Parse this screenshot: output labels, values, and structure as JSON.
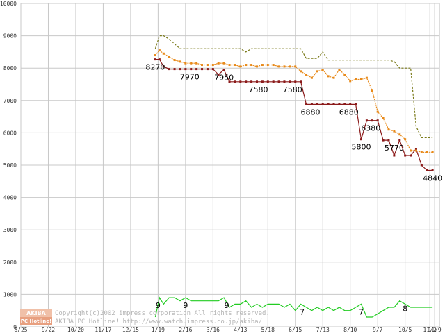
{
  "chart_data": {
    "type": "line",
    "ylim": [
      0,
      10000
    ],
    "yticks": [
      0,
      1000,
      2000,
      3000,
      4000,
      5000,
      6000,
      7000,
      8000,
      9000,
      10000
    ],
    "ytick_labels": [
      "0",
      "1000",
      "2000",
      "3000",
      "4000",
      "5000",
      "6000",
      "7000",
      "8000",
      "9000",
      "10000"
    ],
    "xticks": [
      {
        "pos": 0,
        "label": "8/25"
      },
      {
        "pos": 4,
        "label": "9/22"
      },
      {
        "pos": 8,
        "label": "10/20"
      },
      {
        "pos": 12,
        "label": "11/17"
      },
      {
        "pos": 16,
        "label": "12/15"
      },
      {
        "pos": 20,
        "label": "1/19"
      },
      {
        "pos": 24,
        "label": "2/16"
      },
      {
        "pos": 28,
        "label": "3/16"
      },
      {
        "pos": 32,
        "label": "4/13"
      },
      {
        "pos": 36,
        "label": "5/18"
      },
      {
        "pos": 40,
        "label": "6/15"
      },
      {
        "pos": 44,
        "label": "7/13"
      },
      {
        "pos": 48,
        "label": "8/10"
      },
      {
        "pos": 52,
        "label": "9/7"
      },
      {
        "pos": 56,
        "label": "10/5"
      },
      {
        "pos": 59.6,
        "label": "11/2"
      },
      {
        "pos": 60.3,
        "label": "11/9"
      }
    ],
    "xlim": [
      0,
      61
    ],
    "grid": true,
    "series": [
      {
        "color": "#8b1a1a",
        "marker": "square",
        "x": [
          19.6,
          20.2,
          20.8,
          21.6,
          22.4,
          23.2,
          24.0,
          24.8,
          25.6,
          26.4,
          27.2,
          28.0,
          28.8,
          29.6,
          30.4,
          31.2,
          32.0,
          32.8,
          33.6,
          34.4,
          35.2,
          36.0,
          36.8,
          37.6,
          38.4,
          39.2,
          40.0,
          40.8,
          41.6,
          42.4,
          43.2,
          44.0,
          44.8,
          45.6,
          46.4,
          47.2,
          48.0,
          48.8,
          49.6,
          50.4,
          51.2,
          52.0,
          52.8,
          53.6,
          54.4,
          55.2,
          56.0,
          56.8,
          57.6,
          58.4,
          59.2,
          60.0
        ],
        "y": [
          8270,
          8270,
          8050,
          7970,
          7970,
          7970,
          7970,
          7970,
          7970,
          7970,
          7970,
          7970,
          7800,
          7950,
          7580,
          7580,
          7580,
          7580,
          7580,
          7580,
          7580,
          7580,
          7580,
          7580,
          7580,
          7580,
          7580,
          7580,
          6880,
          6880,
          6880,
          6880,
          6880,
          6880,
          6880,
          6880,
          6880,
          6880,
          5800,
          6380,
          6380,
          6380,
          5770,
          5770,
          5300,
          5770,
          5300,
          5300,
          5500,
          5000,
          4840,
          4840
        ]
      },
      {
        "color": "#e88a1a",
        "marker": "square",
        "style": "dotted",
        "x": [
          19.6,
          20.2,
          20.8,
          21.6,
          22.4,
          23.2,
          24.0,
          24.8,
          25.6,
          26.4,
          27.2,
          28.0,
          28.8,
          29.6,
          30.4,
          31.2,
          32.0,
          32.8,
          33.6,
          34.4,
          35.2,
          36.0,
          36.8,
          37.6,
          38.4,
          39.2,
          40.0,
          40.8,
          41.6,
          42.4,
          43.2,
          44.0,
          44.8,
          45.6,
          46.4,
          47.2,
          48.0,
          48.8,
          49.6,
          50.4,
          51.2,
          52.0,
          52.8,
          53.6,
          54.4,
          55.2,
          56.0,
          56.8,
          57.6,
          58.4,
          59.2,
          60.0
        ],
        "y": [
          8400,
          8550,
          8450,
          8350,
          8250,
          8200,
          8150,
          8150,
          8150,
          8100,
          8100,
          8100,
          8150,
          8150,
          8100,
          8100,
          8050,
          8100,
          8100,
          8050,
          8100,
          8100,
          8100,
          8050,
          8050,
          8050,
          8050,
          7900,
          7800,
          7700,
          7900,
          7950,
          7750,
          7700,
          7950,
          7800,
          7600,
          7650,
          7650,
          7700,
          7300,
          6650,
          6450,
          6100,
          6050,
          5950,
          5800,
          5450,
          5450,
          5400,
          5400,
          5400
        ]
      },
      {
        "color": "#7a7a1a",
        "style": "dashed",
        "x": [
          19.6,
          20.2,
          20.8,
          21.6,
          22.4,
          23.2,
          24.0,
          24.8,
          25.6,
          26.4,
          27.2,
          28.0,
          28.8,
          29.6,
          30.4,
          31.2,
          32.0,
          32.8,
          33.6,
          34.4,
          35.2,
          36.0,
          36.8,
          37.6,
          38.4,
          39.2,
          40.0,
          40.8,
          41.6,
          42.4,
          43.2,
          44.0,
          44.8,
          45.6,
          46.4,
          47.2,
          48.0,
          48.8,
          49.6,
          50.4,
          51.2,
          52.0,
          52.8,
          53.6,
          54.4,
          55.2,
          56.0,
          56.8,
          57.6,
          58.4,
          59.2,
          60.0
        ],
        "y": [
          8600,
          9000,
          9000,
          8900,
          8750,
          8600,
          8600,
          8600,
          8600,
          8600,
          8600,
          8600,
          8600,
          8600,
          8600,
          8600,
          8600,
          8500,
          8600,
          8600,
          8600,
          8600,
          8600,
          8600,
          8600,
          8600,
          8600,
          8600,
          8300,
          8300,
          8300,
          8500,
          8250,
          8250,
          8250,
          8250,
          8250,
          8250,
          8250,
          8250,
          8250,
          8250,
          8250,
          8250,
          8200,
          8000,
          8000,
          8000,
          6200,
          5850,
          5850,
          5850
        ]
      },
      {
        "color": "#22cc22",
        "x": [
          19.6,
          20.2,
          20.8,
          21.6,
          22.4,
          23.2,
          24.0,
          24.8,
          25.6,
          26.4,
          27.2,
          28.0,
          28.8,
          29.6,
          30.4,
          31.2,
          32.0,
          32.8,
          33.6,
          34.4,
          35.2,
          36.0,
          36.8,
          37.6,
          38.4,
          39.2,
          40.0,
          40.8,
          41.6,
          42.4,
          43.2,
          44.0,
          44.8,
          45.6,
          46.4,
          47.2,
          48.0,
          48.8,
          49.6,
          50.4,
          51.2,
          52.0,
          52.8,
          53.6,
          54.4,
          55.2,
          56.0,
          56.8,
          57.6,
          58.4,
          59.2,
          60.0
        ],
        "y": [
          300,
          900,
          700,
          900,
          900,
          800,
          900,
          800,
          800,
          800,
          800,
          800,
          800,
          900,
          600,
          700,
          700,
          800,
          600,
          700,
          600,
          700,
          700,
          700,
          600,
          700,
          500,
          700,
          600,
          500,
          600,
          500,
          600,
          500,
          600,
          500,
          500,
          600,
          700,
          300,
          300,
          400,
          500,
          600,
          600,
          800,
          700,
          600,
          600,
          600,
          600,
          600
        ]
      }
    ],
    "data_labels": [
      {
        "text": "8270",
        "x": 19.6,
        "y": 8270
      },
      {
        "text": "7970",
        "x": 24.6,
        "y": 7970
      },
      {
        "text": "7950",
        "x": 29.6,
        "y": 7950
      },
      {
        "text": "7580",
        "x": 34.6,
        "y": 7580
      },
      {
        "text": "7580",
        "x": 39.6,
        "y": 7580
      },
      {
        "text": "6880",
        "x": 42.2,
        "y": 6880
      },
      {
        "text": "6880",
        "x": 47.8,
        "y": 6880
      },
      {
        "text": "5800",
        "x": 49.6,
        "y": 5800
      },
      {
        "text": "6380",
        "x": 51.0,
        "y": 6380
      },
      {
        "text": "5770",
        "x": 54.4,
        "y": 5770
      },
      {
        "text": "4840",
        "x": 60.0,
        "y": 4840
      },
      {
        "text": "9",
        "x": 20.0,
        "y": 900
      },
      {
        "text": "9",
        "x": 24.0,
        "y": 900
      },
      {
        "text": "9",
        "x": 30.0,
        "y": 900
      },
      {
        "text": "7",
        "x": 41.0,
        "y": 700
      },
      {
        "text": "7",
        "x": 49.6,
        "y": 700
      },
      {
        "text": "8",
        "x": 56.0,
        "y": 800
      }
    ]
  },
  "watermark": {
    "logo_top": "AKIBA",
    "logo_bottom": "PC Hotline!",
    "line1": "Copyright(c)2002 impress corporation All rights reserved.",
    "line2": "AKIBA PC Hotline! http://www.watch.impress.co.jp/akiba/"
  }
}
